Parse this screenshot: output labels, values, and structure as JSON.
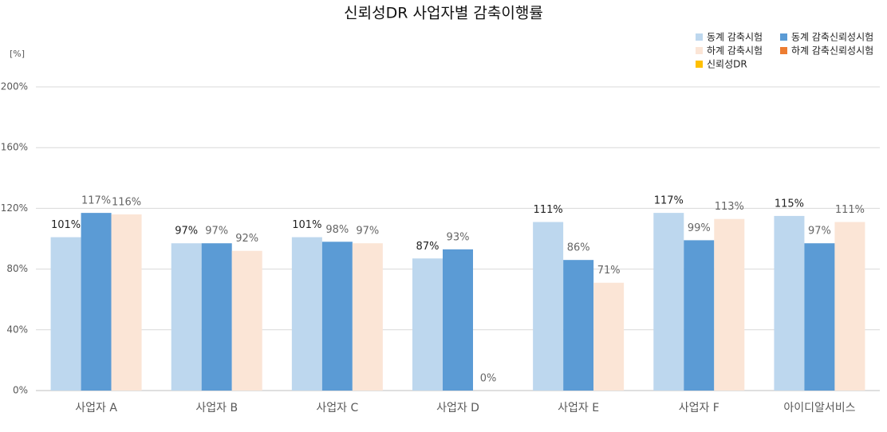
{
  "chart_data": {
    "type": "bar",
    "title": "신뢰성DR 사업자별 감축이행률",
    "y_axis_label": "[%]",
    "categories": [
      "사업자 A",
      "사업자 B",
      "사업자 C",
      "사업자 D",
      "사업자 E",
      "사업자 F",
      "아이디알서비스"
    ],
    "series": [
      {
        "name": "동계 감축시험",
        "color": "#bdd7ee",
        "values": [
          101,
          97,
          101,
          87,
          111,
          117,
          115
        ],
        "value_labels": [
          "101%",
          "97%",
          "101%",
          "87%",
          "111%",
          "117%",
          "115%"
        ]
      },
      {
        "name": "동계 감축신뢰성시험",
        "color": "#5b9bd5",
        "values": [
          117,
          97,
          98,
          93,
          86,
          99,
          97
        ],
        "value_labels": [
          "117%",
          "97%",
          "98%",
          "93%",
          "86%",
          "99%",
          "97%"
        ]
      },
      {
        "name": "하계 감축시험",
        "color": "#fbe5d6",
        "values": [
          116,
          92,
          97,
          0,
          71,
          113,
          111
        ],
        "value_labels": [
          "116%",
          "92%",
          "97%",
          "0%",
          "71%",
          "113%",
          "111%"
        ]
      },
      {
        "name": "하계 감축신뢰성시험",
        "color": "#ed7d31",
        "values": [
          null,
          null,
          null,
          null,
          null,
          null,
          null
        ]
      },
      {
        "name": "신뢰성DR",
        "color": "#ffc000",
        "values": [
          null,
          null,
          null,
          null,
          null,
          null,
          null
        ]
      }
    ],
    "ylim": [
      0,
      200
    ],
    "yticks": [
      {
        "value": 0,
        "label": "0%"
      },
      {
        "value": 40,
        "label": "40%"
      },
      {
        "value": 80,
        "label": "80%"
      },
      {
        "value": 120,
        "label": "120%"
      },
      {
        "value": 160,
        "label": "160%"
      },
      {
        "value": 200,
        "label": "200%"
      }
    ],
    "grid": true,
    "legend": "top-right"
  }
}
